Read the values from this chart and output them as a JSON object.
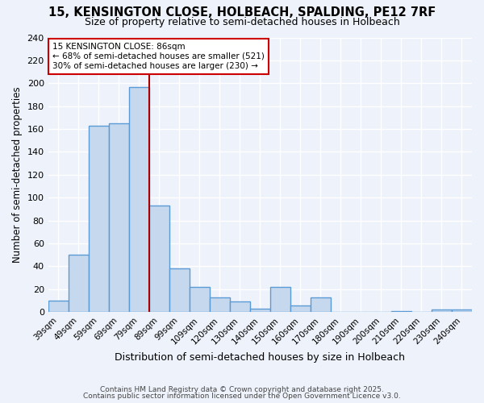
{
  "title": "15, KENSINGTON CLOSE, HOLBEACH, SPALDING, PE12 7RF",
  "subtitle": "Size of property relative to semi-detached houses in Holbeach",
  "xlabel": "Distribution of semi-detached houses by size in Holbeach",
  "ylabel": "Number of semi-detached properties",
  "categories": [
    "39sqm",
    "49sqm",
    "59sqm",
    "69sqm",
    "79sqm",
    "89sqm",
    "99sqm",
    "109sqm",
    "120sqm",
    "130sqm",
    "140sqm",
    "150sqm",
    "160sqm",
    "170sqm",
    "180sqm",
    "190sqm",
    "200sqm",
    "210sqm",
    "220sqm",
    "230sqm",
    "240sqm"
  ],
  "values": [
    10,
    50,
    163,
    165,
    197,
    93,
    38,
    22,
    13,
    9,
    3,
    22,
    6,
    13,
    0,
    0,
    0,
    1,
    0,
    2,
    2
  ],
  "bar_color": "#c5d8ee",
  "bar_edge_color": "#5b9bd5",
  "bar_edge_width": 1.0,
  "vline_color": "#aa0000",
  "annotation_title": "15 KENSINGTON CLOSE: 86sqm",
  "annotation_line1": "← 68% of semi-detached houses are smaller (521)",
  "annotation_line2": "30% of semi-detached houses are larger (230) →",
  "annotation_box_color": "#cc0000",
  "ylim": [
    0,
    240
  ],
  "yticks": [
    0,
    20,
    40,
    60,
    80,
    100,
    120,
    140,
    160,
    180,
    200,
    220,
    240
  ],
  "bg_color": "#eef2fa",
  "grid_color": "#ffffff",
  "footer1": "Contains HM Land Registry data © Crown copyright and database right 2025.",
  "footer2": "Contains public sector information licensed under the Open Government Licence v3.0."
}
